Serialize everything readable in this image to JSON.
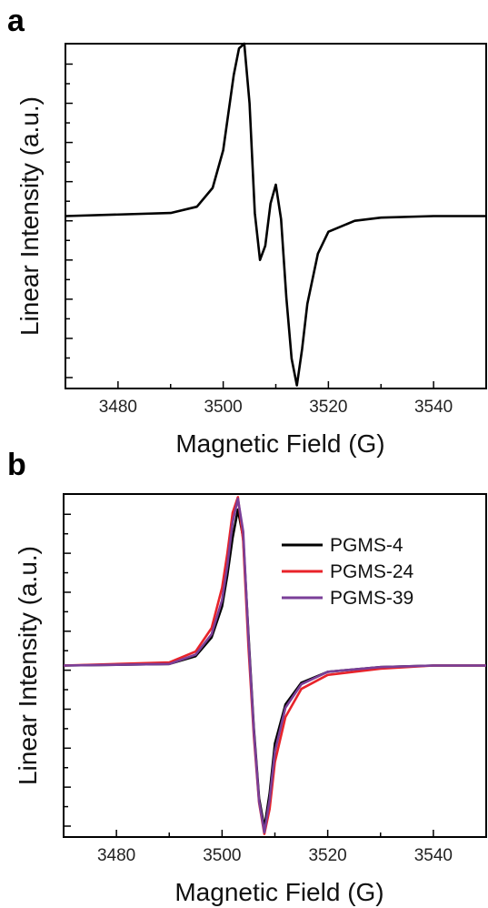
{
  "chart_data": [
    {
      "panel_label": "a",
      "type": "line",
      "xlabel": "Magnetic Field (G)",
      "ylabel": "Linear Intensity (a.u.)",
      "xlim": [
        3470,
        3550
      ],
      "ylim": [
        -1.1,
        1.1
      ],
      "xticks": [
        3480,
        3500,
        3520,
        3540
      ],
      "ytick_labels": "none",
      "grid": false,
      "legend": "none",
      "series": [
        {
          "color": "#000000",
          "x": [
            3470,
            3490,
            3495,
            3498,
            3500,
            3502,
            3503,
            3504,
            3505,
            3506,
            3507,
            3508,
            3509,
            3510,
            3511,
            3512,
            3513,
            3514,
            3515,
            3516,
            3518,
            3520,
            3525,
            3530,
            3540,
            3550
          ],
          "y": [
            0,
            0.02,
            0.06,
            0.18,
            0.42,
            0.9,
            1.07,
            1.1,
            0.72,
            0.02,
            -0.28,
            -0.19,
            0.08,
            0.2,
            -0.02,
            -0.52,
            -0.91,
            -1.08,
            -0.85,
            -0.56,
            -0.24,
            -0.1,
            -0.03,
            -0.01,
            0,
            0
          ]
        }
      ]
    },
    {
      "panel_label": "b",
      "type": "line",
      "xlabel": "Magnetic Field (G)",
      "ylabel": "Linear Intensity (a.u.)",
      "xlim": [
        3470,
        3550
      ],
      "ylim": [
        -1.1,
        1.1
      ],
      "xticks": [
        3480,
        3500,
        3520,
        3540
      ],
      "ytick_labels": "none",
      "grid": false,
      "legend": "top-right",
      "series": [
        {
          "name": "PGMS-4",
          "color": "#000000",
          "x": [
            3470,
            3490,
            3495,
            3498,
            3500,
            3501,
            3502,
            3503,
            3504,
            3505,
            3506,
            3507,
            3508,
            3509,
            3510,
            3512,
            3515,
            3520,
            3530,
            3540,
            3550
          ],
          "y": [
            0,
            0.01,
            0.06,
            0.18,
            0.38,
            0.58,
            0.82,
            1.0,
            0.82,
            0.2,
            -0.4,
            -0.85,
            -1.04,
            -0.82,
            -0.5,
            -0.25,
            -0.11,
            -0.04,
            -0.01,
            0,
            0
          ]
        },
        {
          "name": "PGMS-24",
          "color": "#e8232a",
          "x": [
            3470,
            3490,
            3495,
            3498,
            3500,
            3501,
            3502,
            3503,
            3504,
            3505,
            3506,
            3507,
            3508,
            3509,
            3510,
            3512,
            3515,
            3520,
            3530,
            3540,
            3550
          ],
          "y": [
            0,
            0.02,
            0.09,
            0.24,
            0.5,
            0.72,
            0.98,
            1.08,
            0.8,
            0.12,
            -0.45,
            -0.88,
            -1.08,
            -0.92,
            -0.62,
            -0.33,
            -0.15,
            -0.06,
            -0.02,
            0,
            0
          ]
        },
        {
          "name": "PGMS-39",
          "color": "#7a3f98",
          "x": [
            3470,
            3490,
            3495,
            3498,
            3500,
            3501,
            3502,
            3503,
            3504,
            3505,
            3506,
            3507,
            3508,
            3509,
            3510,
            3512,
            3515,
            3520,
            3530,
            3540,
            3550
          ],
          "y": [
            0,
            0.01,
            0.07,
            0.2,
            0.42,
            0.64,
            0.92,
            1.07,
            0.86,
            0.18,
            -0.42,
            -0.87,
            -1.07,
            -0.86,
            -0.55,
            -0.27,
            -0.12,
            -0.04,
            -0.01,
            0,
            0
          ]
        }
      ]
    }
  ]
}
